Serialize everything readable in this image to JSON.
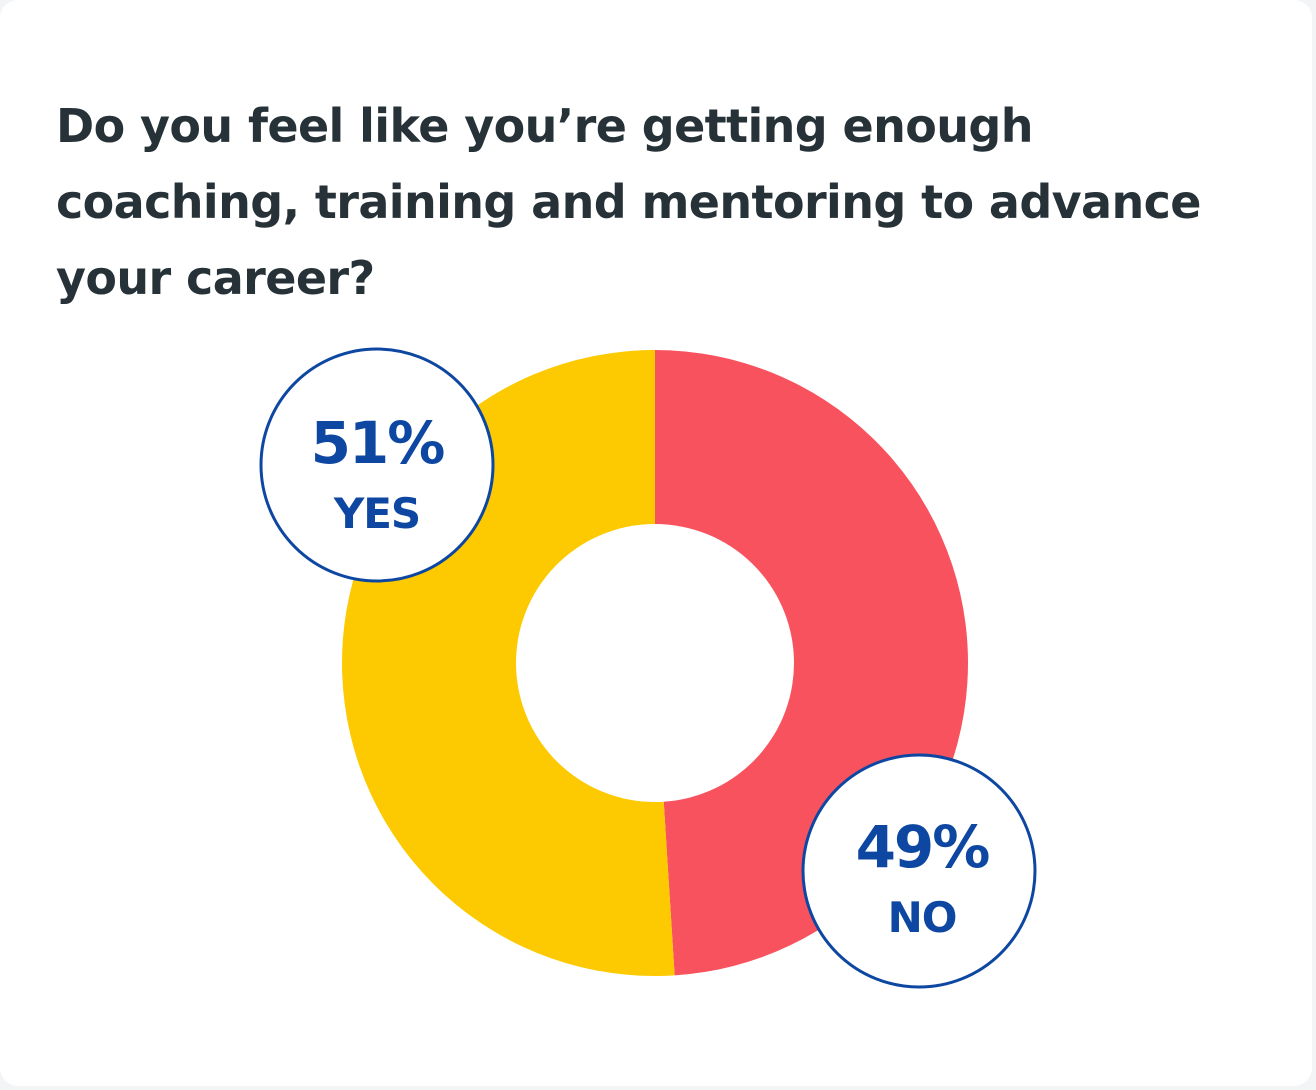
{
  "chart_data": {
    "type": "pie",
    "title": "Do you feel like you’re getting enough coaching, training and mentoring to advance your career?",
    "slices": [
      {
        "label": "YES",
        "value": 51,
        "value_text": "51%",
        "color": "#FDC900"
      },
      {
        "label": "NO",
        "value": 49,
        "value_text": "49%",
        "color": "#F9525F"
      }
    ]
  },
  "colors": {
    "title": "#263238",
    "callout_text": "#0D47A1",
    "callout_border": "#0D47A1",
    "card_background": "#FFFFFF"
  }
}
